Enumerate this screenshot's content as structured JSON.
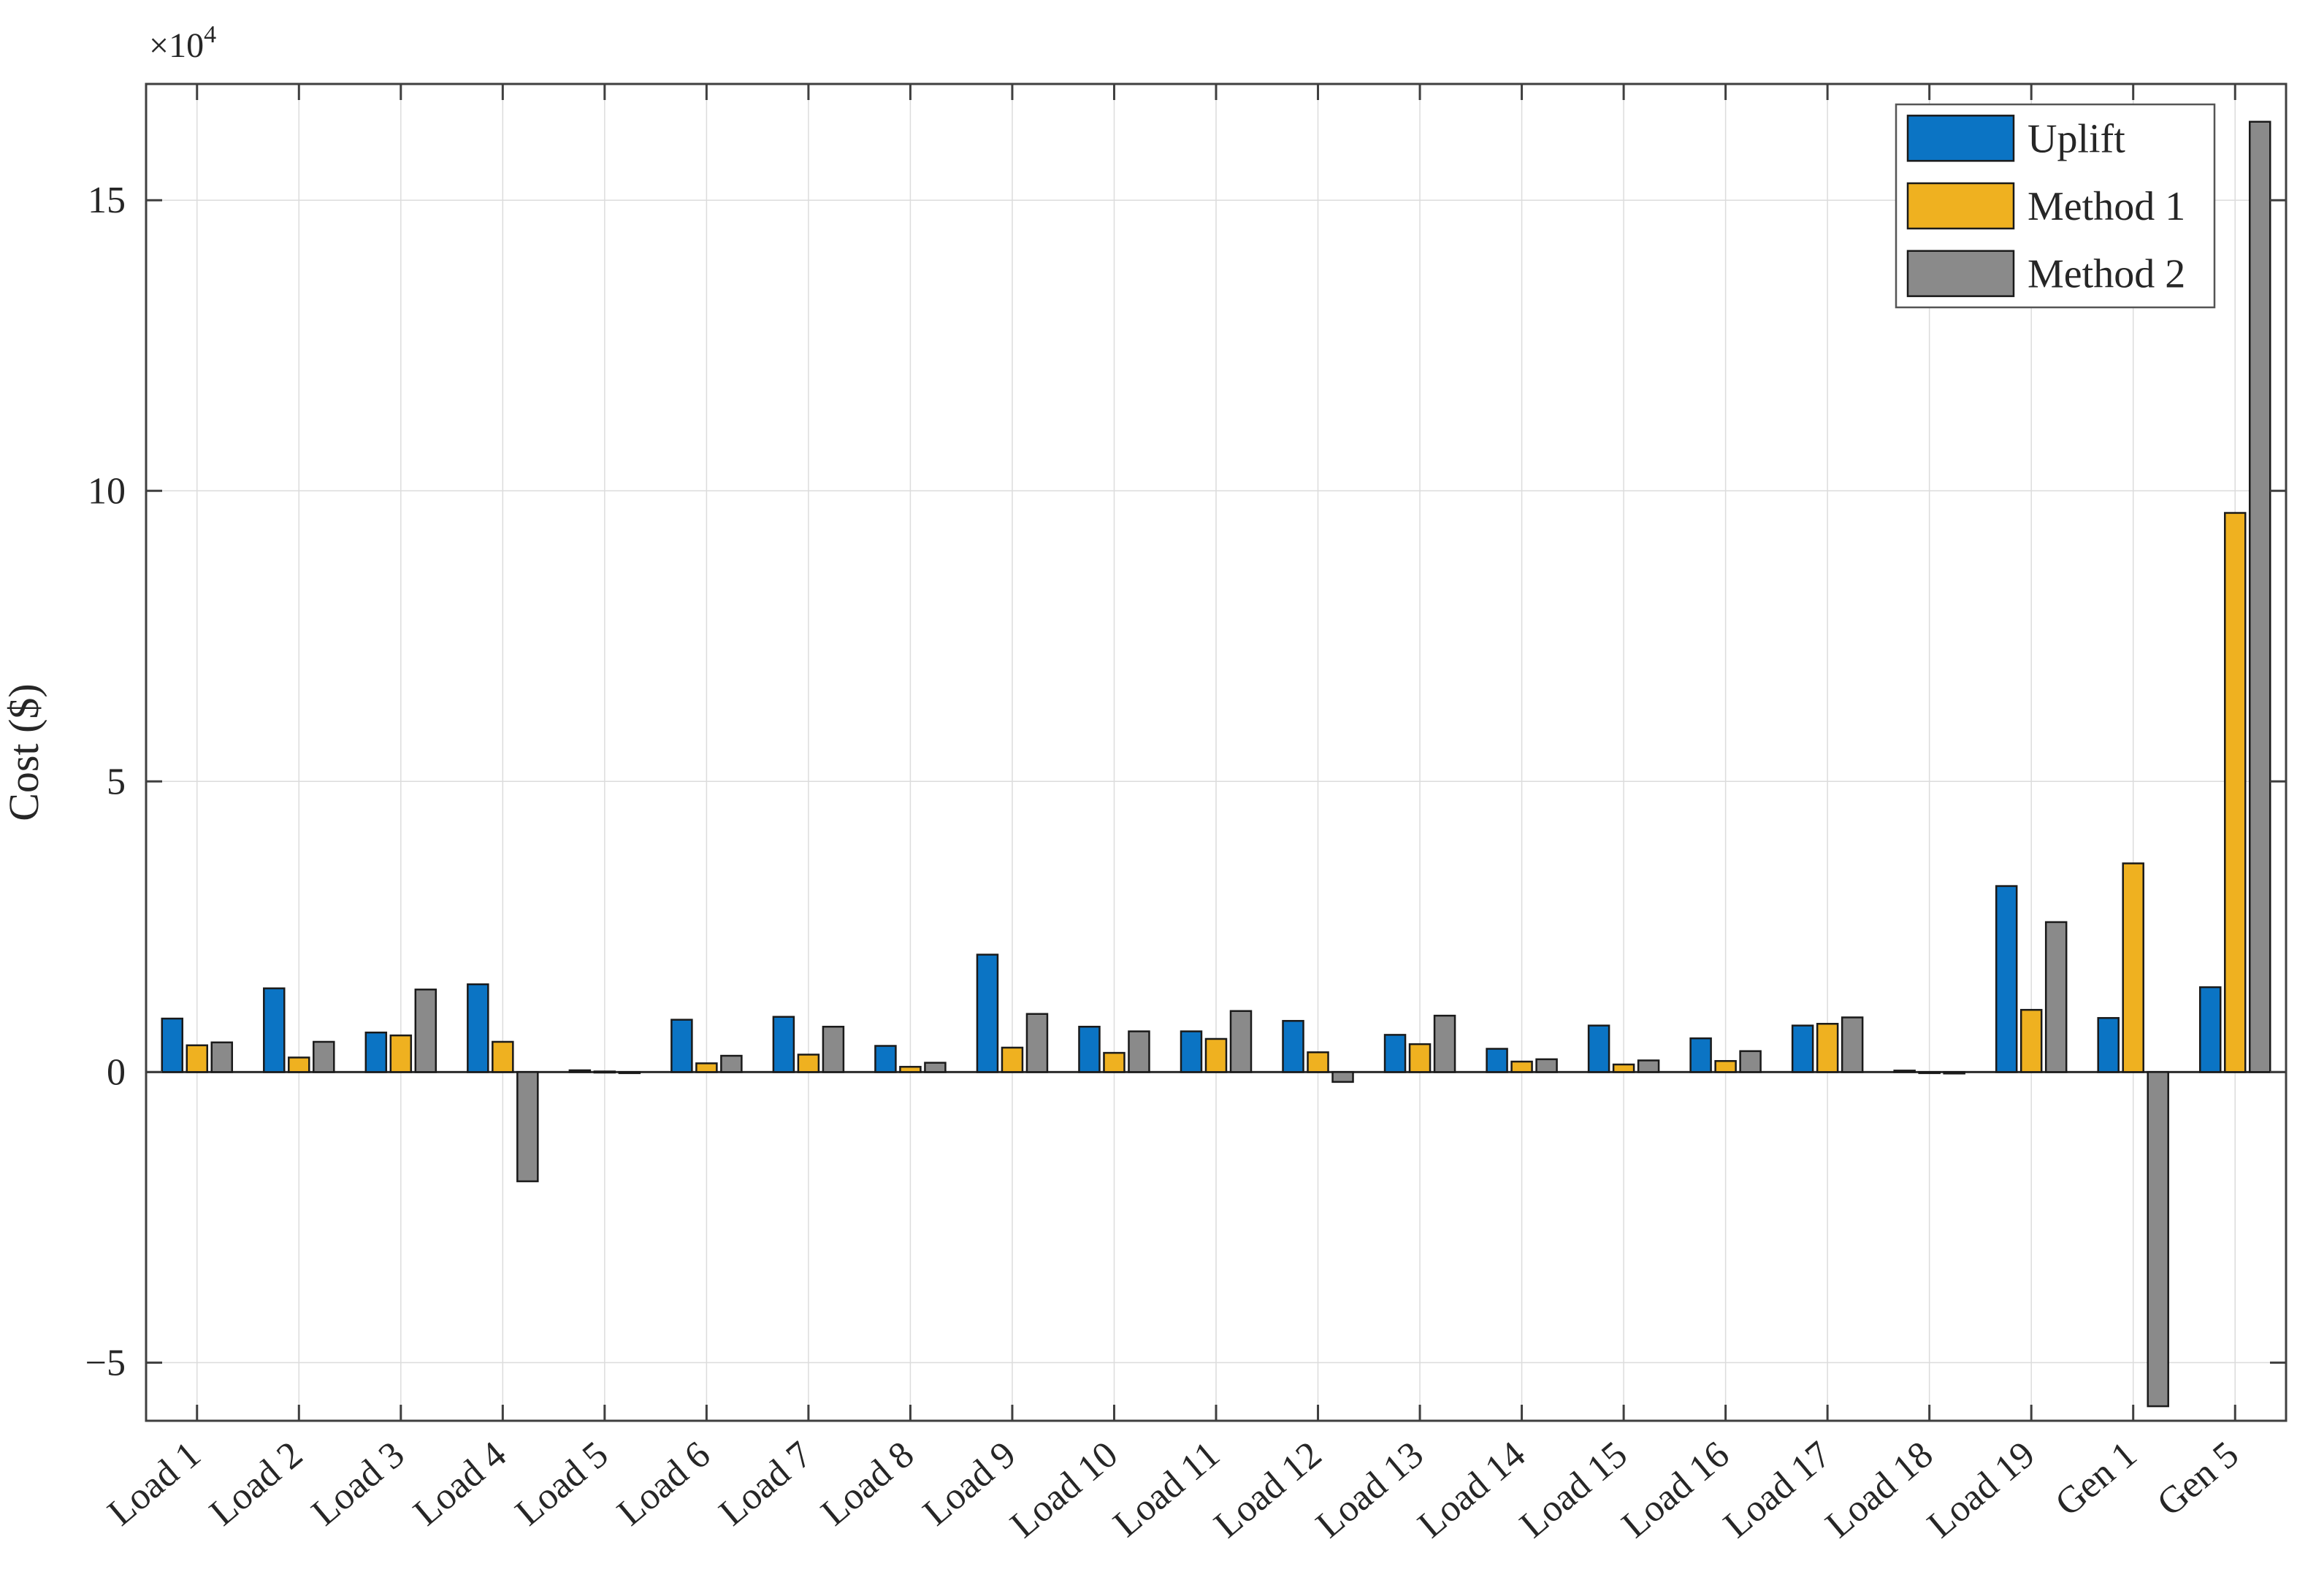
{
  "figure": {
    "kind": "grouped-bar-figure",
    "background": "#ffffff",
    "axis_multiplier_label": "×10",
    "axis_multiplier_exponent": "4",
    "ylabel": "Cost ($)"
  },
  "legend": {
    "position": "top-right",
    "entries": [
      {
        "label": "Uplift",
        "color": "#0B74C4"
      },
      {
        "label": "Method 1",
        "color": "#EFB120"
      },
      {
        "label": "Method 2",
        "color": "#8A8A8A"
      }
    ]
  },
  "chart_data": {
    "type": "bar",
    "title": "",
    "xlabel": "",
    "ylabel": "Cost ($)",
    "y_unit_multiplier": 10000,
    "ylim": [
      -60000,
      170000
    ],
    "yticks": [
      {
        "value": -50000,
        "label": "−5"
      },
      {
        "value": 0,
        "label": "0"
      },
      {
        "value": 50000,
        "label": "5"
      },
      {
        "value": 100000,
        "label": "10"
      },
      {
        "value": 150000,
        "label": "15"
      }
    ],
    "grid": true,
    "legend_position": "top-right",
    "categories": [
      "Load 1",
      "Load 2",
      "Load 3",
      "Load 4",
      "Load 5",
      "Load 6",
      "Load 7",
      "Load 8",
      "Load 9",
      "Load 10",
      "Load 11",
      "Load 12",
      "Load 13",
      "Load 14",
      "Load 15",
      "Load 16",
      "Load 17",
      "Load 18",
      "Load 19",
      "Gen 1",
      "Gen 5"
    ],
    "series": [
      {
        "name": "Uplift",
        "color": "#0B74C4",
        "values": [
          9200,
          14400,
          6800,
          15100,
          300,
          9000,
          9500,
          4500,
          20200,
          7800,
          7000,
          8800,
          6400,
          4000,
          8000,
          5800,
          8000,
          250,
          32000,
          9300,
          14600
        ]
      },
      {
        "name": "Method 1",
        "color": "#EFB120",
        "values": [
          4600,
          2500,
          6300,
          5200,
          100,
          1500,
          3000,
          900,
          4200,
          3300,
          5700,
          3400,
          4800,
          1800,
          1300,
          1900,
          8300,
          -100,
          10700,
          35900,
          96200
        ]
      },
      {
        "name": "Method 2",
        "color": "#8A8A8A",
        "values": [
          5100,
          5200,
          14200,
          -18800,
          -150,
          2800,
          7800,
          1600,
          10000,
          7000,
          10500,
          -1700,
          9700,
          2200,
          2000,
          3600,
          9400,
          -250,
          25800,
          -57500,
          163500
        ]
      }
    ]
  }
}
